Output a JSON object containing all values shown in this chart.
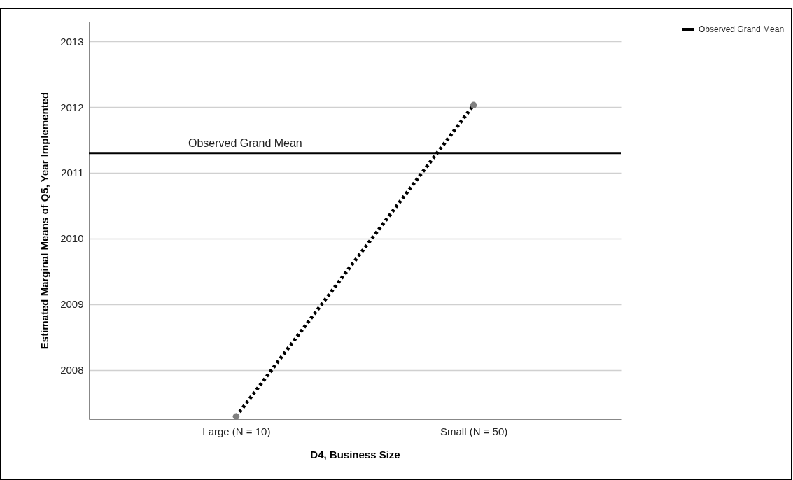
{
  "chart_data": {
    "type": "line",
    "xlabel": "D4, Business Size",
    "ylabel": "Estimated Marginal Means of Q5, Year Implemented",
    "categories": [
      "Large (N = 10)",
      "Small (N = 50)"
    ],
    "series": [
      {
        "color": "#000000",
        "values": [
          2007.29,
          2012.03
        ]
      }
    ],
    "ylim": [
      2007.25,
      2013.3
    ],
    "yticks": [
      2008,
      2009,
      2010,
      2011,
      2012,
      2013
    ],
    "ref_lines": [
      {
        "axis": "y",
        "value": 2011.3,
        "label": "Observed Grand Mean",
        "color": "#000000",
        "line_style": "solid"
      }
    ],
    "grid": "y",
    "legend": "top right",
    "marker": "circle",
    "line_style": "dotted"
  }
}
